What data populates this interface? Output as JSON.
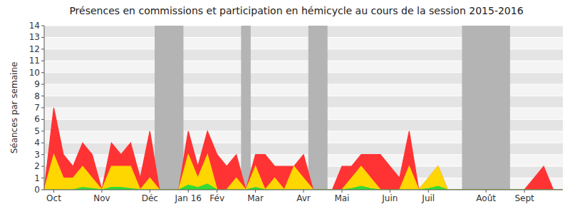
{
  "chart_data": {
    "type": "area",
    "title": "Présences en commissions et participation en hémicycle au cours de la session 2015-2016",
    "ylabel": "Séances par semaine",
    "categories": [
      null,
      "Oct",
      null,
      null,
      null,
      null,
      "Nov",
      null,
      null,
      null,
      null,
      "Déc",
      null,
      null,
      null,
      "Jan 16",
      null,
      null,
      "Fév",
      null,
      null,
      null,
      "Mar",
      null,
      null,
      null,
      null,
      "Avr",
      null,
      null,
      null,
      "Mai",
      null,
      null,
      null,
      null,
      "Juin",
      null,
      null,
      null,
      "Juil",
      null,
      null,
      null,
      null,
      null,
      "Août",
      null,
      null,
      null,
      "Sept",
      null,
      null,
      null,
      null
    ],
    "series": [
      {
        "color": "#ff3333",
        "values": [
          0,
          7,
          3,
          2,
          4,
          3,
          0,
          4,
          3,
          4,
          1,
          5,
          0,
          0,
          0,
          5,
          2,
          5,
          3,
          2,
          3,
          0,
          3,
          3,
          2,
          2,
          2,
          3,
          0,
          0,
          0,
          2,
          2,
          3,
          3,
          3,
          2,
          1,
          5,
          0,
          1,
          2,
          0,
          0,
          0,
          0,
          0,
          0,
          0,
          0,
          0,
          1,
          2,
          0,
          0
        ]
      },
      {
        "color": "#ffd700",
        "values": [
          0,
          3,
          1,
          1,
          2,
          1,
          0,
          2,
          2,
          2,
          0,
          1,
          0,
          0,
          0,
          3,
          1,
          3,
          0,
          0,
          1,
          0,
          2,
          0,
          1,
          0,
          2,
          1,
          0,
          0,
          0,
          0,
          1,
          2,
          1,
          0,
          0,
          0,
          2,
          0,
          1,
          2,
          0,
          0,
          0,
          0,
          0,
          0,
          0,
          0,
          0,
          0,
          0,
          0,
          0
        ]
      },
      {
        "color": "#33dd33",
        "values": [
          0,
          0,
          0,
          0,
          0.2,
          0.1,
          0,
          0.2,
          0.2,
          0.1,
          0,
          0,
          0,
          0,
          0,
          0.4,
          0.2,
          0.5,
          0,
          0,
          0,
          0,
          0.2,
          0,
          0,
          0,
          0,
          0,
          0,
          0,
          0,
          0,
          0.1,
          0.3,
          0.1,
          0,
          0,
          0,
          0,
          0,
          0.1,
          0.3,
          0,
          0,
          0,
          0,
          0,
          0,
          0,
          0,
          0,
          0,
          0,
          0,
          0
        ]
      }
    ],
    "shaded_periods": [
      [
        11.5,
        14.5
      ],
      [
        20.5,
        21.5
      ],
      [
        27.5,
        29.5
      ],
      [
        43.5,
        48.5
      ]
    ],
    "stacked": false,
    "grid": true,
    "ylim": [
      0,
      14
    ],
    "yticks": [
      0,
      1,
      2,
      3,
      4,
      5,
      6,
      7,
      8,
      9,
      10,
      11,
      12,
      13,
      14
    ]
  }
}
